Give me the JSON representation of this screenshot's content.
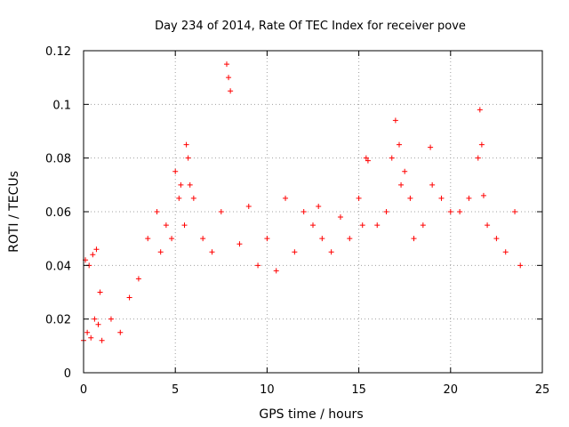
{
  "chart_data": {
    "type": "scatter",
    "title": "Day 234 of 2014, Rate Of TEC Index for receiver pove",
    "xlabel": "GPS time / hours",
    "ylabel": "ROTI / TECUs",
    "xlim": [
      0,
      25
    ],
    "ylim": [
      0,
      0.12
    ],
    "x_ticks": [
      0,
      5,
      10,
      15,
      20,
      25
    ],
    "x_tick_labels": [
      "0",
      "5",
      "10",
      "15",
      "20",
      "25"
    ],
    "y_ticks": [
      0,
      0.02,
      0.04,
      0.06,
      0.08,
      0.1,
      0.12
    ],
    "y_tick_labels": [
      "0",
      "0.02",
      "0.04",
      "0.06",
      "0.08",
      "0.1",
      "0.12"
    ],
    "grid": true,
    "marker": "plus",
    "marker_color": "#ff0000",
    "series": [
      {
        "x": [
          0.0,
          0.1,
          0.2,
          0.3,
          0.4,
          0.5,
          0.6,
          0.7,
          0.8,
          0.9,
          1.0,
          1.5,
          2.0,
          2.5,
          3.0,
          3.5,
          4.0,
          4.2,
          4.5,
          4.8,
          5.0,
          5.2,
          5.3,
          5.5,
          5.6,
          5.7,
          5.8,
          6.0,
          6.5,
          7.0,
          7.5,
          7.8,
          7.9,
          8.0,
          8.5,
          9.0,
          9.5,
          10.0,
          10.5,
          11.0,
          11.5,
          12.0,
          12.5,
          12.8,
          13.0,
          13.5,
          14.0,
          14.5,
          15.0,
          15.2,
          15.4,
          15.5,
          16.0,
          16.5,
          16.8,
          17.0,
          17.2,
          17.3,
          17.5,
          17.8,
          18.0,
          18.5,
          18.9,
          19.0,
          19.5,
          20.0,
          20.5,
          21.0,
          21.5,
          21.6,
          21.7,
          21.8,
          22.0,
          22.5,
          23.0,
          23.5,
          23.8
        ],
        "y": [
          0.012,
          0.042,
          0.015,
          0.04,
          0.013,
          0.044,
          0.02,
          0.046,
          0.018,
          0.03,
          0.012,
          0.02,
          0.015,
          0.028,
          0.035,
          0.05,
          0.06,
          0.045,
          0.055,
          0.05,
          0.075,
          0.065,
          0.07,
          0.055,
          0.085,
          0.08,
          0.07,
          0.065,
          0.05,
          0.045,
          0.06,
          0.115,
          0.11,
          0.105,
          0.048,
          0.062,
          0.04,
          0.05,
          0.038,
          0.065,
          0.045,
          0.06,
          0.055,
          0.062,
          0.05,
          0.045,
          0.058,
          0.05,
          0.065,
          0.055,
          0.08,
          0.079,
          0.055,
          0.06,
          0.08,
          0.094,
          0.085,
          0.07,
          0.075,
          0.065,
          0.05,
          0.055,
          0.084,
          0.07,
          0.065,
          0.06,
          0.06,
          0.065,
          0.08,
          0.098,
          0.085,
          0.066,
          0.055,
          0.05,
          0.045,
          0.06,
          0.04
        ]
      }
    ]
  }
}
